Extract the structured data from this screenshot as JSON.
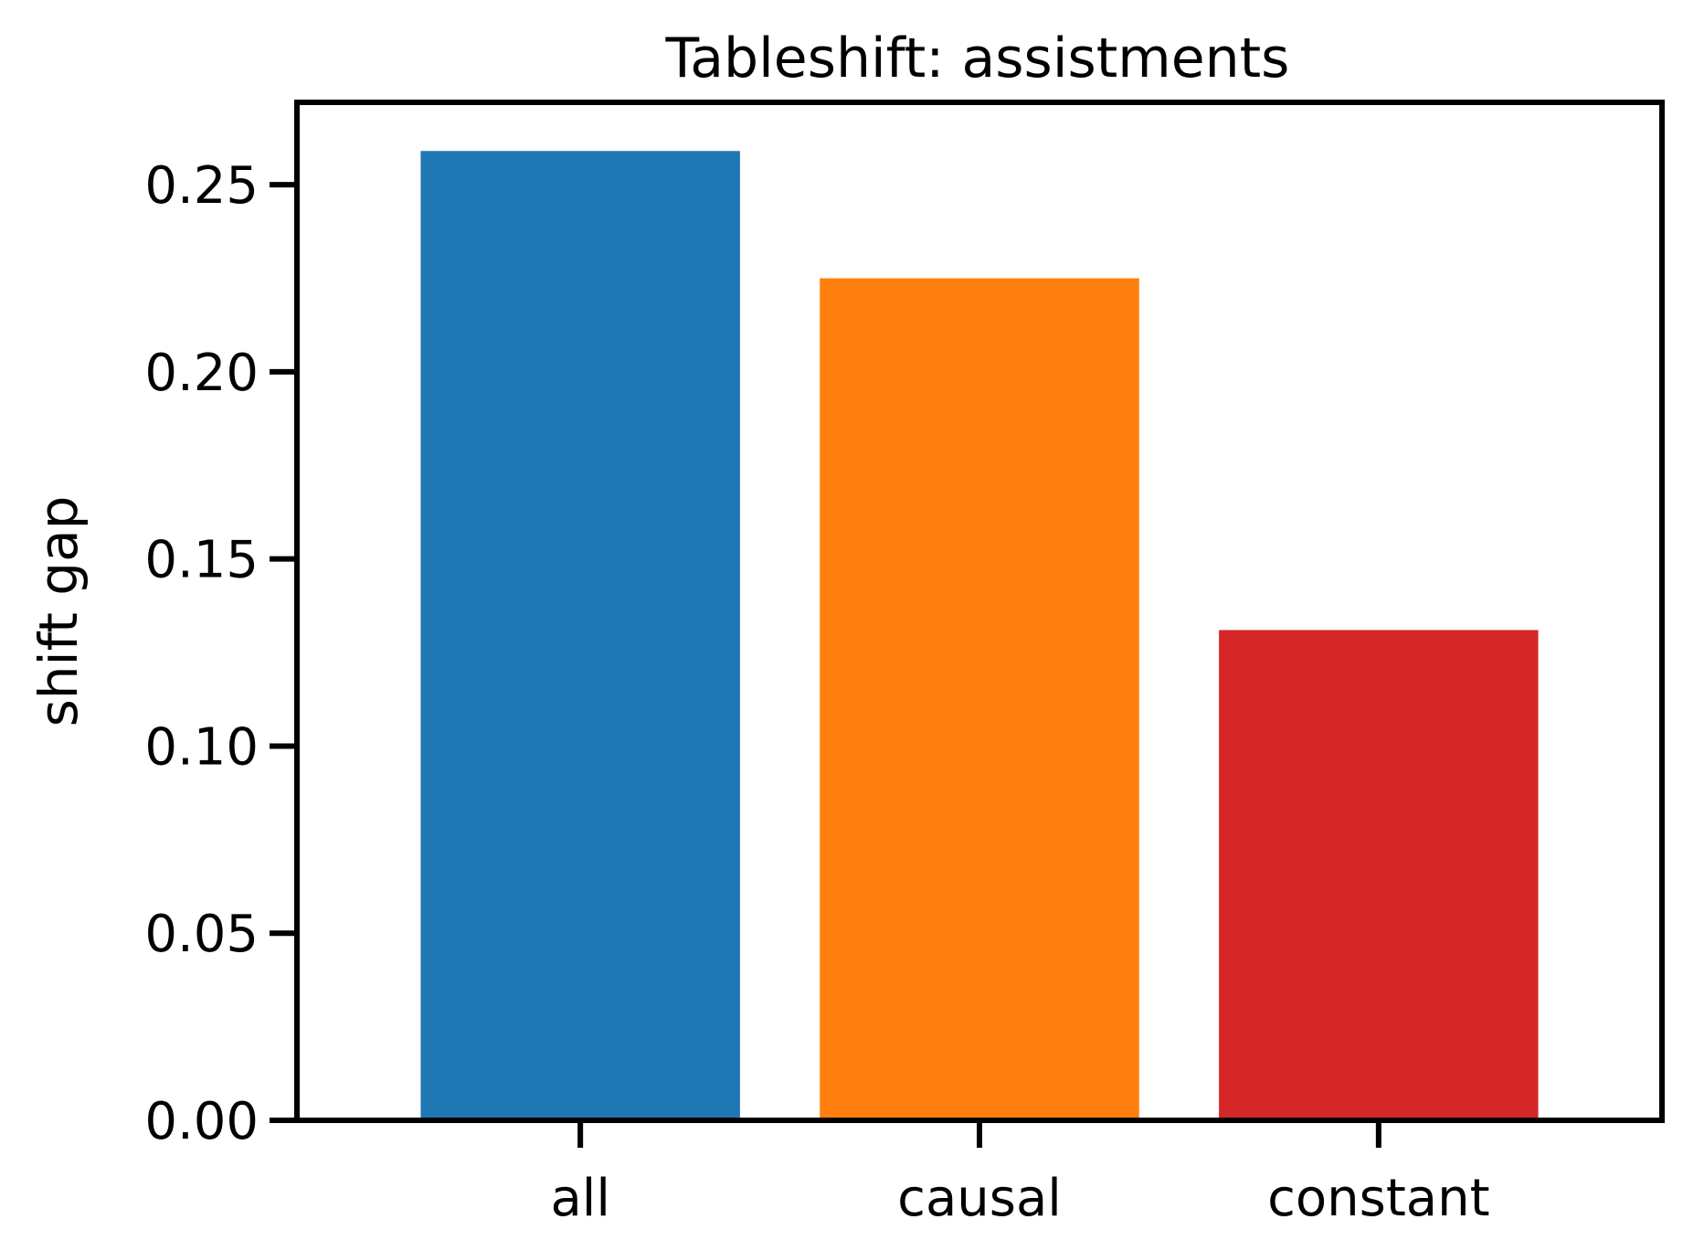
{
  "chart_data": {
    "type": "bar",
    "title": "Tableshift: assistments",
    "xlabel": "",
    "ylabel": "shift gap",
    "categories": [
      "all",
      "causal",
      "constant"
    ],
    "values": [
      0.259,
      0.225,
      0.131
    ],
    "colors": [
      "#1f77b4",
      "#ff7f0e",
      "#d62728"
    ],
    "ylim": [
      0,
      0.272
    ],
    "yticks": [
      0.0,
      0.05,
      0.1,
      0.15,
      0.2,
      0.25
    ],
    "ytick_labels": [
      "0.00",
      "0.05",
      "0.10",
      "0.15",
      "0.20",
      "0.25"
    ],
    "grid": false,
    "legend": "none"
  }
}
